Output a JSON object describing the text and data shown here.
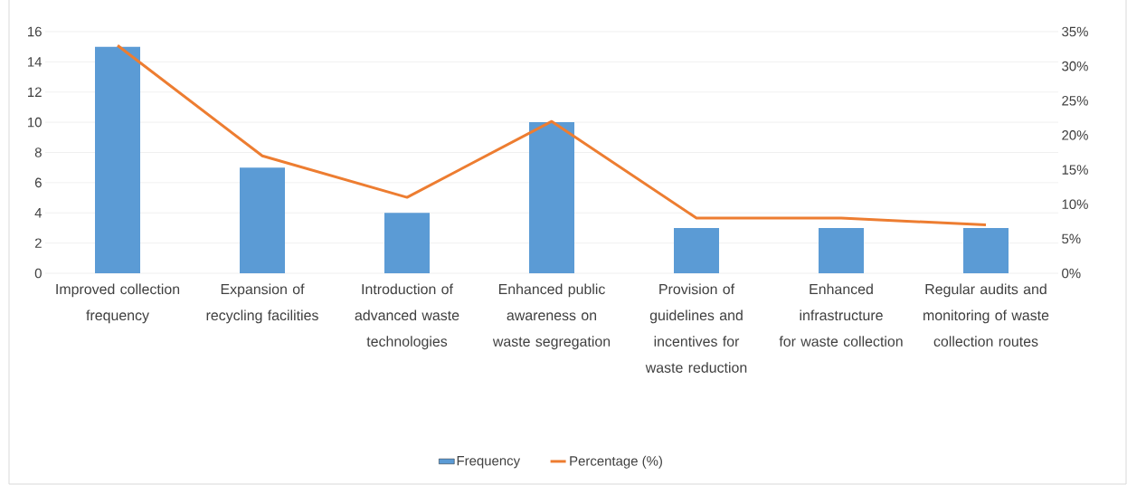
{
  "chart_data": {
    "type": "bar",
    "categories": [
      "Improved collection frequency",
      "Expansion of recycling facilities",
      "Introduction of advanced waste technologies",
      "Enhanced public awareness on waste segregation",
      "Provision of guidelines and incentives for waste reduction",
      "Enhanced infrastructure for waste collection",
      "Regular audits and monitoring of waste collection routes"
    ],
    "series": [
      {
        "name": "Frequency",
        "color": "#5b9bd5",
        "values": [
          15,
          7,
          4,
          10,
          3,
          3,
          3
        ]
      },
      {
        "name": "Percentage (%)",
        "type": "line",
        "axis": "y2",
        "color": "#ed7d31",
        "values": [
          33,
          17,
          11,
          22,
          8,
          8,
          7
        ]
      }
    ],
    "ylim": [
      0,
      16
    ],
    "yticks": [
      0,
      2,
      4,
      6,
      8,
      10,
      12,
      14,
      16
    ],
    "y2lim": [
      0,
      35
    ],
    "y2ticks": [
      {
        "value": 0,
        "label": "0%"
      },
      {
        "value": 5,
        "label": "5%"
      },
      {
        "value": 10,
        "label": "10%"
      },
      {
        "value": 15,
        "label": "15%"
      },
      {
        "value": 20,
        "label": "20%"
      },
      {
        "value": 25,
        "label": "25%"
      },
      {
        "value": 30,
        "label": "30%"
      },
      {
        "value": 35,
        "label": "35%"
      }
    ],
    "grid": "y",
    "legend": "bottom",
    "marker": "none",
    "line_style": "solid"
  }
}
